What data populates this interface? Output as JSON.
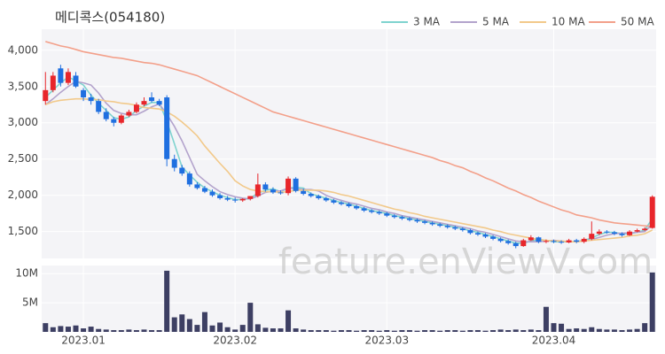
{
  "chart_data": {
    "type": "candlestick",
    "title": "메디콕스(054180)",
    "watermark": "feature.enViewV.com",
    "categories": [
      null,
      null,
      null,
      null,
      null,
      "2023.01",
      null,
      null,
      null,
      null,
      null,
      null,
      null,
      null,
      null,
      null,
      null,
      null,
      null,
      null,
      null,
      null,
      null,
      null,
      null,
      "2023.02",
      null,
      null,
      null,
      null,
      null,
      null,
      null,
      null,
      null,
      null,
      null,
      null,
      null,
      null,
      null,
      null,
      null,
      null,
      null,
      "2023.03",
      null,
      null,
      null,
      null,
      null,
      null,
      null,
      null,
      null,
      null,
      null,
      null,
      null,
      null,
      null,
      null,
      null,
      null,
      null,
      null,
      null,
      "2023.04",
      null,
      null,
      null,
      null,
      null,
      null,
      null,
      null,
      null,
      null,
      null,
      null,
      null
    ],
    "open": [
      3300,
      3450,
      3750,
      3550,
      3650,
      3450,
      3350,
      3300,
      3150,
      3050,
      3000,
      3100,
      3150,
      3250,
      3350,
      3300,
      3350,
      2500,
      2380,
      2300,
      2150,
      2100,
      2050,
      2000,
      1960,
      1940,
      1930,
      1950,
      1990,
      2150,
      2080,
      2040,
      2030,
      2230,
      2060,
      2020,
      1990,
      1960,
      1930,
      1900,
      1880,
      1850,
      1820,
      1790,
      1770,
      1750,
      1720,
      1700,
      1680,
      1660,
      1640,
      1620,
      1600,
      1580,
      1560,
      1540,
      1520,
      1480,
      1460,
      1430,
      1400,
      1370,
      1340,
      1300,
      1380,
      1420,
      1360,
      1370,
      1360,
      1350,
      1380,
      1360,
      1400,
      1470,
      1500,
      1490,
      1470,
      1450,
      1500,
      1520,
      1550
    ],
    "high": [
      3700,
      3700,
      3800,
      3750,
      3700,
      3480,
      3400,
      3330,
      3200,
      3080,
      3120,
      3180,
      3280,
      3350,
      3420,
      3330,
      3380,
      2560,
      2420,
      2330,
      2180,
      2130,
      2080,
      2030,
      1990,
      1970,
      1960,
      1990,
      2300,
      2180,
      2110,
      2070,
      2260,
      2250,
      2090,
      2040,
      2010,
      1980,
      1950,
      1920,
      1900,
      1870,
      1840,
      1810,
      1790,
      1770,
      1740,
      1720,
      1700,
      1680,
      1660,
      1640,
      1620,
      1600,
      1580,
      1560,
      1540,
      1500,
      1480,
      1450,
      1420,
      1390,
      1360,
      1400,
      1450,
      1430,
      1390,
      1390,
      1380,
      1400,
      1400,
      1420,
      1640,
      1530,
      1520,
      1510,
      1490,
      1520,
      1540,
      1560,
      2000
    ],
    "low": [
      3250,
      3420,
      3500,
      3520,
      3480,
      3300,
      3250,
      3120,
      3020,
      2950,
      2980,
      3080,
      3130,
      3230,
      3280,
      3230,
      2400,
      2330,
      2270,
      2120,
      2080,
      2030,
      1980,
      1940,
      1920,
      1900,
      1910,
      1930,
      1970,
      2050,
      2020,
      2010,
      2000,
      2040,
      2000,
      1970,
      1940,
      1910,
      1880,
      1860,
      1830,
      1800,
      1770,
      1750,
      1730,
      1700,
      1680,
      1660,
      1640,
      1620,
      1600,
      1580,
      1560,
      1540,
      1520,
      1500,
      1460,
      1440,
      1410,
      1380,
      1350,
      1320,
      1270,
      1290,
      1370,
      1340,
      1340,
      1340,
      1330,
      1340,
      1340,
      1340,
      1380,
      1450,
      1470,
      1450,
      1430,
      1440,
      1490,
      1510,
      1540
    ],
    "close": [
      3450,
      3650,
      3550,
      3700,
      3500,
      3350,
      3300,
      3150,
      3050,
      3000,
      3100,
      3150,
      3250,
      3300,
      3300,
      3250,
      2500,
      2380,
      2300,
      2150,
      2100,
      2050,
      2000,
      1960,
      1940,
      1930,
      1950,
      1990,
      2150,
      2080,
      2040,
      2030,
      2230,
      2060,
      2020,
      1990,
      1960,
      1930,
      1900,
      1880,
      1850,
      1820,
      1790,
      1770,
      1750,
      1720,
      1700,
      1680,
      1660,
      1640,
      1620,
      1600,
      1580,
      1560,
      1540,
      1520,
      1480,
      1460,
      1430,
      1400,
      1370,
      1340,
      1300,
      1380,
      1420,
      1360,
      1370,
      1360,
      1350,
      1380,
      1360,
      1400,
      1470,
      1500,
      1490,
      1470,
      1450,
      1500,
      1520,
      1540,
      1980
    ],
    "up_color": "#e8262b",
    "down_color": "#1f6fe0",
    "ylim": [
      1130,
      4290
    ],
    "yticks": [
      {
        "value": 1500,
        "label": "1,500"
      },
      {
        "value": 2000,
        "label": "2,000"
      },
      {
        "value": 2500,
        "label": "2,500"
      },
      {
        "value": 3000,
        "label": "3,000"
      },
      {
        "value": 3500,
        "label": "3,500"
      },
      {
        "value": 4000,
        "label": "4,000"
      }
    ],
    "grid": true,
    "series": [
      {
        "name": "3 MA",
        "color": "#7fd3cf",
        "values": [
          3350,
          3450,
          3550,
          3630,
          3580,
          3520,
          3380,
          3270,
          3170,
          3070,
          3050,
          3080,
          3170,
          3230,
          3280,
          3280,
          3020,
          2710,
          2390,
          2280,
          2180,
          2100,
          2050,
          2000,
          1970,
          1940,
          1940,
          1960,
          2030,
          2070,
          2090,
          2050,
          2100,
          2110,
          2100,
          2020,
          1990,
          1960,
          1930,
          1900,
          1880,
          1850,
          1820,
          1790,
          1770,
          1750,
          1720,
          1700,
          1680,
          1660,
          1640,
          1620,
          1600,
          1580,
          1560,
          1540,
          1510,
          1490,
          1460,
          1430,
          1400,
          1370,
          1340,
          1340,
          1370,
          1390,
          1380,
          1360,
          1360,
          1360,
          1360,
          1380,
          1410,
          1460,
          1490,
          1490,
          1470,
          1470,
          1490,
          1520,
          1680
        ]
      },
      {
        "name": "5 MA",
        "color": "#b3a3cc",
        "values": [
          3250,
          3330,
          3420,
          3500,
          3570,
          3550,
          3520,
          3410,
          3270,
          3170,
          3130,
          3110,
          3110,
          3160,
          3220,
          3260,
          3120,
          2950,
          2750,
          2520,
          2290,
          2200,
          2120,
          2050,
          2010,
          1980,
          1960,
          1950,
          1990,
          2040,
          2060,
          2060,
          2100,
          2090,
          2080,
          2080,
          2060,
          2000,
          1960,
          1930,
          1900,
          1880,
          1850,
          1820,
          1800,
          1770,
          1750,
          1720,
          1700,
          1680,
          1660,
          1640,
          1620,
          1600,
          1580,
          1560,
          1540,
          1510,
          1490,
          1460,
          1430,
          1400,
          1370,
          1360,
          1360,
          1360,
          1370,
          1380,
          1370,
          1360,
          1360,
          1370,
          1390,
          1420,
          1450,
          1470,
          1480,
          1480,
          1490,
          1500,
          1600
        ]
      },
      {
        "name": "10 MA",
        "color": "#f2c98a",
        "values": [
          3250,
          3290,
          3310,
          3320,
          3330,
          3330,
          3320,
          3320,
          3300,
          3290,
          3270,
          3260,
          3240,
          3210,
          3200,
          3190,
          3150,
          3090,
          3010,
          2920,
          2820,
          2680,
          2560,
          2440,
          2330,
          2200,
          2130,
          2080,
          2060,
          2050,
          2050,
          2040,
          2050,
          2070,
          2070,
          2070,
          2070,
          2060,
          2040,
          2010,
          1990,
          1960,
          1930,
          1900,
          1870,
          1840,
          1810,
          1790,
          1760,
          1740,
          1710,
          1690,
          1670,
          1650,
          1630,
          1610,
          1590,
          1570,
          1550,
          1520,
          1500,
          1470,
          1450,
          1430,
          1410,
          1390,
          1380,
          1370,
          1370,
          1360,
          1360,
          1370,
          1380,
          1390,
          1400,
          1410,
          1420,
          1440,
          1450,
          1470,
          1520
        ]
      },
      {
        "name": "50 MA",
        "color": "#f3a08a",
        "values": [
          4120,
          4090,
          4060,
          4040,
          4010,
          3980,
          3960,
          3940,
          3920,
          3900,
          3890,
          3870,
          3850,
          3830,
          3820,
          3800,
          3770,
          3740,
          3710,
          3680,
          3650,
          3600,
          3550,
          3500,
          3450,
          3400,
          3350,
          3300,
          3250,
          3200,
          3150,
          3120,
          3090,
          3060,
          3030,
          3000,
          2970,
          2940,
          2910,
          2880,
          2850,
          2820,
          2790,
          2760,
          2730,
          2700,
          2670,
          2640,
          2610,
          2580,
          2550,
          2520,
          2480,
          2450,
          2410,
          2380,
          2330,
          2290,
          2240,
          2200,
          2150,
          2100,
          2060,
          2010,
          1970,
          1920,
          1880,
          1840,
          1800,
          1770,
          1730,
          1710,
          1690,
          1660,
          1640,
          1620,
          1610,
          1600,
          1590,
          1580,
          1570
        ]
      }
    ],
    "volume": {
      "color": "#3d3f63",
      "values": [
        1500000,
        800000,
        1000000,
        900000,
        1100000,
        600000,
        900000,
        500000,
        400000,
        300000,
        300000,
        400000,
        300000,
        400000,
        300000,
        300000,
        10500000,
        2500000,
        3000000,
        2200000,
        1200000,
        3400000,
        1100000,
        1600000,
        800000,
        400000,
        1200000,
        5000000,
        1300000,
        700000,
        600000,
        600000,
        3700000,
        600000,
        400000,
        300000,
        300000,
        300000,
        200000,
        300000,
        300000,
        200000,
        300000,
        300000,
        200000,
        300000,
        200000,
        300000,
        300000,
        200000,
        300000,
        300000,
        200000,
        300000,
        300000,
        200000,
        300000,
        300000,
        200000,
        300000,
        400000,
        300000,
        400000,
        300000,
        400000,
        300000,
        4300000,
        1500000,
        1400000,
        500000,
        600000,
        500000,
        800000,
        500000,
        400000,
        400000,
        300000,
        400000,
        500000,
        1500000,
        10200000
      ],
      "ylim": [
        0,
        11400000
      ],
      "yticks": [
        {
          "value": 5000000,
          "label": "5M"
        },
        {
          "value": 10000000,
          "label": "10M"
        }
      ]
    }
  }
}
